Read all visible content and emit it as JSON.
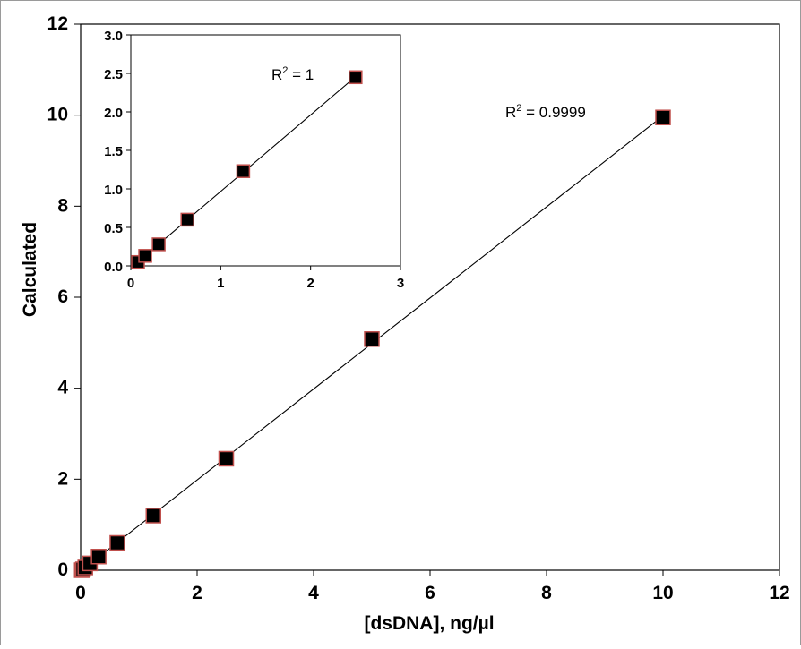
{
  "chart_data": [
    {
      "type": "scatter",
      "name": "main",
      "xlabel": "[dsDNA],  ng/µl",
      "ylabel": "Calculated",
      "xlim": [
        0,
        12
      ],
      "ylim": [
        0,
        12
      ],
      "xticks": [
        "0",
        "2",
        "4",
        "6",
        "8",
        "10",
        "12"
      ],
      "yticks": [
        "0",
        "2",
        "4",
        "6",
        "8",
        "10",
        "12"
      ],
      "grid": false,
      "trendline": "linear",
      "annotation": {
        "r2_prefix": "R",
        "r2_exponent": "2",
        "r2_value": " = 0.9999"
      },
      "x": [
        0.02,
        0.04,
        0.08,
        0.16,
        0.31,
        0.63,
        1.25,
        2.5,
        5.0,
        10.0
      ],
      "y": [
        0.0,
        0.02,
        0.06,
        0.15,
        0.3,
        0.6,
        1.2,
        2.45,
        5.08,
        9.95
      ],
      "marker_color": "#000000",
      "marker_edge": "#c0504d",
      "line_color": "#000000"
    },
    {
      "type": "scatter",
      "name": "inset",
      "xlabel": "",
      "ylabel": "",
      "xlim": [
        0,
        3
      ],
      "ylim": [
        0,
        3
      ],
      "xticks": [
        "0",
        "1",
        "2",
        "3"
      ],
      "yticks": [
        "0.0",
        "0.5",
        "1.0",
        "1.5",
        "2.0",
        "2.5",
        "3.0"
      ],
      "grid": false,
      "trendline": "linear",
      "annotation": {
        "r2_prefix": "R",
        "r2_exponent": "2",
        "r2_value": " = 1"
      },
      "x": [
        0.08,
        0.16,
        0.31,
        0.63,
        1.25,
        2.5
      ],
      "y": [
        0.05,
        0.13,
        0.28,
        0.6,
        1.23,
        2.45
      ],
      "marker_color": "#000000",
      "marker_edge": "#c0504d",
      "line_color": "#000000"
    }
  ]
}
